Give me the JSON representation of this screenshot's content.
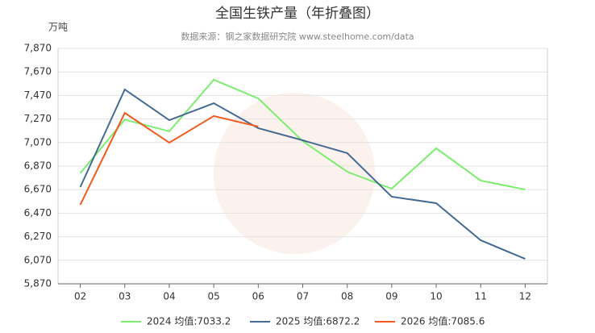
{
  "chart_data": {
    "type": "line",
    "title": "全国生铁产量（年折叠图）",
    "subtitle": "数据来源：钢之家数据研究院 www.steelhome.com/data",
    "y_label": "万吨",
    "categories": [
      "02",
      "03",
      "04",
      "05",
      "06",
      "07",
      "08",
      "09",
      "10",
      "11",
      "12"
    ],
    "series": [
      {
        "name": "2024 均值:7033.2",
        "color": "#7ded6f",
        "values": [
          6810,
          7265,
          7165,
          7603,
          7445,
          7082,
          6822,
          6678,
          7021,
          6747,
          6671
        ]
      },
      {
        "name": "2025 均值:6872.2",
        "color": "#456b93",
        "values": [
          6692,
          7521,
          7260,
          7404,
          7192,
          7089,
          6980,
          6610,
          6555,
          6240,
          6082
        ]
      },
      {
        "name": "2026 均值:7085.6",
        "color": "#f4591f",
        "values": [
          6541,
          7322,
          7069,
          7295,
          7206,
          null,
          null,
          null,
          null,
          null,
          null
        ]
      }
    ],
    "ylim": [
      5870,
      7870
    ],
    "yticks": [
      {
        "value": 5870,
        "label": "5,870"
      },
      {
        "value": 6070,
        "label": "6,070"
      },
      {
        "value": 6270,
        "label": "6,270"
      },
      {
        "value": 6470,
        "label": "6,470"
      },
      {
        "value": 6670,
        "label": "6,670"
      },
      {
        "value": 6870,
        "label": "6,870"
      },
      {
        "value": 7070,
        "label": "7,070"
      },
      {
        "value": 7270,
        "label": "7,270"
      },
      {
        "value": 7470,
        "label": "7,470"
      },
      {
        "value": 7670,
        "label": "7,670"
      },
      {
        "value": 7870,
        "label": "7,870"
      }
    ],
    "grid": true
  }
}
